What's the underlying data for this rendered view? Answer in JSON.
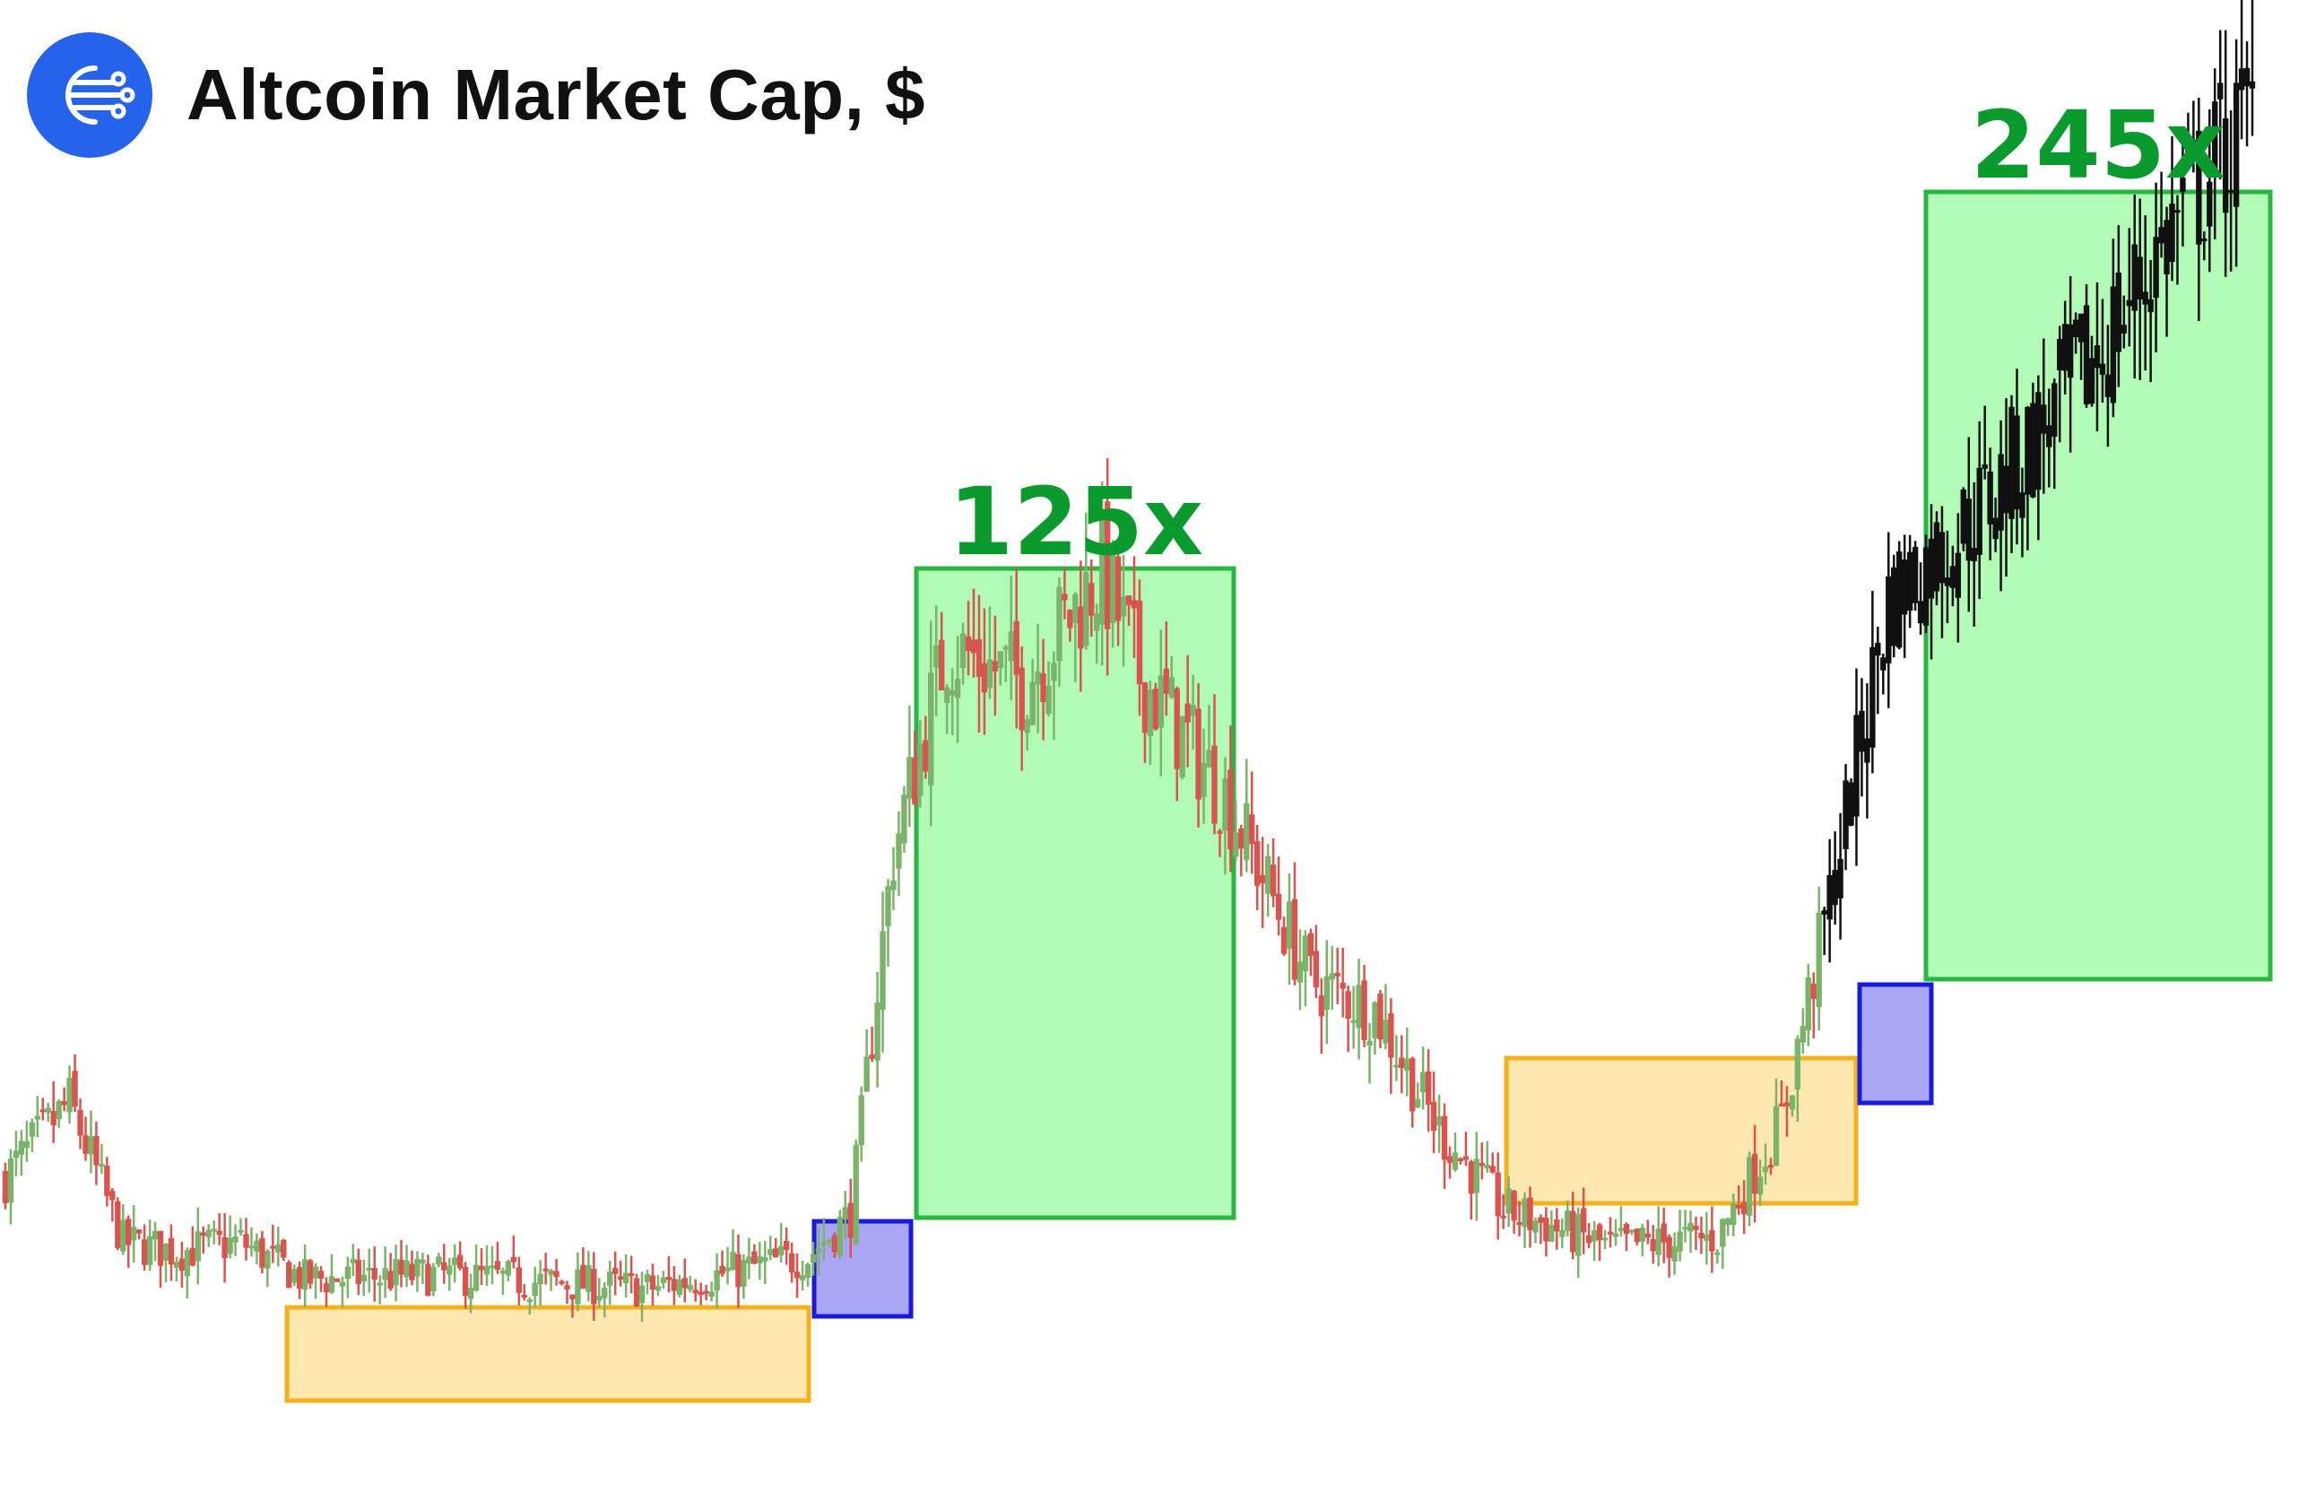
{
  "header": {
    "title": "Altcoin Market Cap, $",
    "logo_icon": "network-nodes-icon",
    "logo_color": "#2563eb"
  },
  "colors": {
    "up_candle": "#7cb36a",
    "down_candle": "#d9534f",
    "recent_candle": "#111111",
    "accumulation_fill": "#ffe7b0",
    "accumulation_stroke": "#f2b21c",
    "breakout_fill": "#a9a6f5",
    "breakout_stroke": "#1a1adb",
    "rally_fill": "#b1fbb6",
    "rally_stroke": "#2bb641",
    "label_color": "#0b9a2e"
  },
  "chart_data": {
    "type": "candlestick",
    "title": "Altcoin Market Cap, $",
    "xlabel": "",
    "ylabel": "",
    "grid": false,
    "legend": "none",
    "annotations": [
      {
        "kind": "accumulation",
        "label": ""
      },
      {
        "kind": "breakout",
        "label": ""
      },
      {
        "kind": "rally",
        "label": "125x"
      },
      {
        "kind": "accumulation",
        "label": ""
      },
      {
        "kind": "breakout",
        "label": ""
      },
      {
        "kind": "rally",
        "label": "245x"
      }
    ],
    "trend_anchors": [
      [
        0,
        62
      ],
      [
        12,
        78
      ],
      [
        22,
        48
      ],
      [
        32,
        46
      ],
      [
        44,
        48
      ],
      [
        56,
        40
      ],
      [
        80,
        41
      ],
      [
        120,
        38
      ],
      [
        150,
        45
      ],
      [
        158,
        54
      ],
      [
        166,
        132
      ],
      [
        176,
        176
      ],
      [
        190,
        168
      ],
      [
        205,
        192
      ],
      [
        212,
        170
      ],
      [
        228,
        144
      ],
      [
        244,
        104
      ],
      [
        256,
        98
      ],
      [
        268,
        72
      ],
      [
        280,
        55
      ],
      [
        300,
        47
      ],
      [
        320,
        49
      ],
      [
        332,
        74
      ],
      [
        340,
        116
      ],
      [
        352,
        186
      ],
      [
        370,
        206
      ],
      [
        392,
        240
      ],
      [
        405,
        266
      ],
      [
        420,
        290
      ]
    ]
  }
}
